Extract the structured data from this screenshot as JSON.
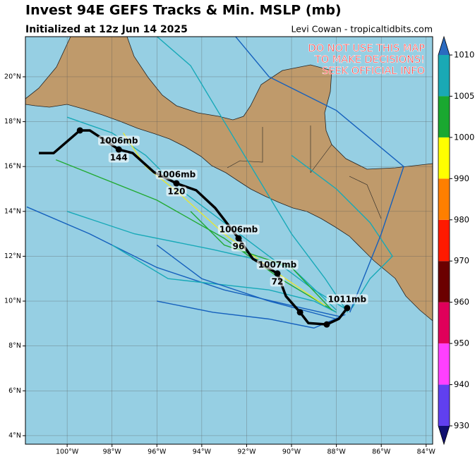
{
  "header": {
    "title": "Invest 94E GEFS Tracks & Min. MSLP (mb)",
    "subtitle": "Initialized at 12z Jun 14 2025",
    "credit": "Levi Cowan - tropicaltidbits.com"
  },
  "warning": [
    "DO NOT USE THIS MAP",
    "TO MAKE DECISIONS!",
    "SEEK OFFICIAL INFO"
  ],
  "map": {
    "xlim": [
      -101.86,
      -83.71
    ],
    "ylim": [
      3.62,
      21.79
    ],
    "xticks": [
      {
        "value": -100,
        "label": "100°W"
      },
      {
        "value": -98,
        "label": "98°W"
      },
      {
        "value": -96,
        "label": "96°W"
      },
      {
        "value": -94,
        "label": "94°W"
      },
      {
        "value": -92,
        "label": "92°W"
      },
      {
        "value": -90,
        "label": "90°W"
      },
      {
        "value": -88,
        "label": "88°W"
      },
      {
        "value": -86,
        "label": "86°W"
      },
      {
        "value": -84,
        "label": "84°W"
      }
    ],
    "yticks": [
      {
        "value": 4,
        "label": "4°N"
      },
      {
        "value": 6,
        "label": "6°N"
      },
      {
        "value": 8,
        "label": "8°N"
      },
      {
        "value": 10,
        "label": "10°N"
      },
      {
        "value": 12,
        "label": "12°N"
      },
      {
        "value": 14,
        "label": "14°N"
      },
      {
        "value": 16,
        "label": "16°N"
      },
      {
        "value": 18,
        "label": "18°N"
      },
      {
        "value": 20,
        "label": "20°N"
      }
    ],
    "grid": true,
    "tracks": [
      {
        "color": "#17a9b8",
        "lon": [
          -87.5,
          -89,
          -91,
          -93,
          -95,
          -96.5,
          -98,
          -100
        ],
        "lat": [
          9.6,
          10.5,
          12,
          13.5,
          15,
          16.5,
          17.5,
          18.2
        ]
      },
      {
        "color": "#1560bd",
        "lon": [
          -87.8,
          -90,
          -93,
          -96,
          -99,
          -101.8
        ],
        "lat": [
          9.3,
          9.8,
          10.5,
          11.5,
          13,
          14.2
        ]
      },
      {
        "color": "#22aa33",
        "lon": [
          -88,
          -90.5,
          -93,
          -96,
          -98.5,
          -100.5
        ],
        "lat": [
          9.5,
          11,
          12.8,
          14.5,
          15.5,
          16.3
        ]
      },
      {
        "color": "#e8e830",
        "lon": [
          -88.5,
          -91,
          -93,
          -95,
          -96.5,
          -97.5
        ],
        "lat": [
          9.8,
          11.5,
          13,
          14.8,
          16,
          17.5
        ]
      },
      {
        "color": "#17a9b8",
        "lon": [
          -87.5,
          -88.5,
          -90,
          -91.5,
          -93,
          -94.5,
          -96
        ],
        "lat": [
          9.5,
          11,
          13,
          15.5,
          18,
          20.5,
          21.8
        ]
      },
      {
        "color": "#1560bd",
        "lon": [
          -87.6,
          -89,
          -91,
          -93.5,
          -96
        ],
        "lat": [
          9.4,
          8.8,
          9.2,
          9.5,
          10
        ]
      },
      {
        "color": "#17a9b8",
        "lon": [
          -87.3,
          -86.5,
          -85.5,
          -86.5,
          -88,
          -90
        ],
        "lat": [
          9.7,
          11,
          12,
          13.5,
          15,
          16.5
        ]
      },
      {
        "color": "#17a9b8",
        "lon": [
          -88,
          -90,
          -93.5,
          -97,
          -100
        ],
        "lat": [
          9.6,
          11.5,
          12.3,
          13,
          14
        ]
      },
      {
        "color": "#1560bd",
        "lon": [
          -87.4,
          -86,
          -85,
          -88,
          -91,
          -92.5
        ],
        "lat": [
          9.5,
          13,
          16,
          18.5,
          20,
          21.8
        ]
      },
      {
        "color": "#17a9b8",
        "lon": [
          -88,
          -89,
          -91,
          -95.5,
          -98
        ],
        "lat": [
          9.5,
          10,
          10.5,
          11,
          12.5
        ]
      },
      {
        "color": "#1560bd",
        "lon": [
          -88,
          -91,
          -94,
          -96
        ],
        "lat": [
          9.2,
          10,
          11,
          12.5
        ]
      },
      {
        "color": "#22aa33",
        "lon": [
          -88.2,
          -90,
          -93,
          -94.5
        ],
        "lat": [
          9.6,
          11.5,
          12.5,
          14
        ]
      }
    ],
    "mean_track": {
      "color": "#000000",
      "lon": [
        -101.26,
        -100.6,
        -99.43,
        -98.99,
        -97.7,
        -97.08,
        -96.13,
        -95.13,
        -94.25,
        -93.4,
        -92.36,
        -91.73,
        -90.63,
        -90.25,
        -89.62,
        -89.25,
        -88.43,
        -87.89,
        -87.52
      ],
      "lat": [
        16.6,
        16.6,
        17.61,
        17.61,
        16.76,
        16.6,
        15.75,
        15.25,
        14.94,
        14.15,
        12.8,
        11.89,
        11.23,
        10.22,
        9.5,
        9.02,
        8.96,
        9.21,
        9.69
      ],
      "markers": [
        2,
        4,
        7,
        10,
        12,
        14,
        16,
        18
      ],
      "labels": [
        {
          "point": 4,
          "pressure": "1006mb",
          "hour": "144"
        },
        {
          "point": 7,
          "pressure": "1006mb",
          "hour": "120"
        },
        {
          "point": 10,
          "pressure": "1006mb",
          "hour": "96"
        },
        {
          "point": 12,
          "pressure": "1007mb",
          "hour": "72"
        },
        {
          "point": 18,
          "pressure": "1011mb"
        }
      ]
    }
  },
  "colorbar": {
    "levels": [
      930,
      940,
      950,
      960,
      970,
      980,
      990,
      1000,
      1005,
      1010
    ],
    "colors": [
      "#6040f0",
      "#ff40ff",
      "#e0005a",
      "#6b0000",
      "#ff1a00",
      "#ff7f00",
      "#ffff00",
      "#1aa830",
      "#1aa9b5"
    ],
    "under": "#101070",
    "over": "#2a6ac0"
  }
}
